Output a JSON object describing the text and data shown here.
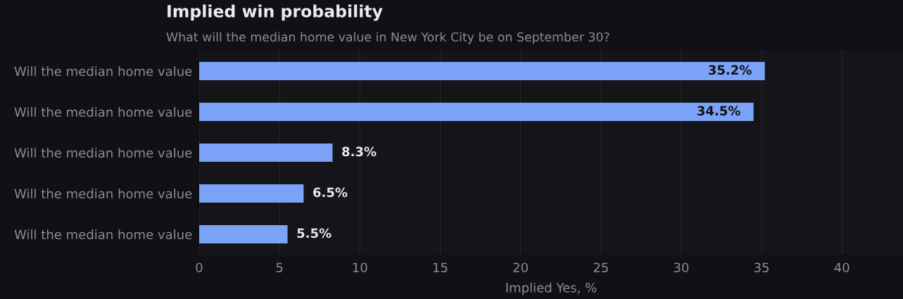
{
  "chart_data": {
    "type": "bar",
    "orientation": "horizontal",
    "title": "Implied win probability",
    "subtitle": "What will the median home value in New York City be on September 30?",
    "xlabel": "Implied Yes, %",
    "categories": [
      "Will the median home value",
      "Will the median home value",
      "Will the median home value",
      "Will the median home value",
      "Will the median home value"
    ],
    "values": [
      35.2,
      34.5,
      8.3,
      6.5,
      5.5
    ],
    "color": "#7ba3f7",
    "value_labels": [
      "35.2%",
      "34.5%",
      "8.3%",
      "6.5%",
      "5.5%"
    ],
    "xlim": [
      0,
      43.8
    ],
    "xticks": [
      0,
      5,
      10,
      15,
      20,
      25,
      30,
      35,
      40
    ],
    "grid": "x"
  }
}
